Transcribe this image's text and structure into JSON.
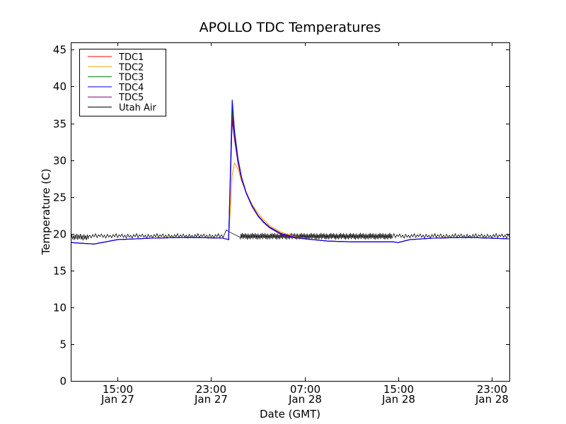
{
  "chart_data": {
    "type": "line",
    "title": "APOLLO TDC Temperatures",
    "xlabel": "Date (GMT)",
    "ylabel": "Temperature (C)",
    "ylim": [
      0,
      46
    ],
    "yticks": [
      0,
      5,
      10,
      15,
      20,
      25,
      30,
      35,
      40,
      45
    ],
    "xlim": [
      11.0,
      48.5
    ],
    "xticks": [
      {
        "x": 15.0,
        "time": "15:00",
        "date": "Jan 27"
      },
      {
        "x": 23.0,
        "time": "23:00",
        "date": "Jan 27"
      },
      {
        "x": 31.0,
        "time": "07:00",
        "date": "Jan 28"
      },
      {
        "x": 39.0,
        "time": "15:00",
        "date": "Jan 28"
      },
      {
        "x": 47.0,
        "time": "23:00",
        "date": "Jan 28"
      }
    ],
    "legend_position": "top-left",
    "series": [
      {
        "name": "TDC1",
        "color": "#ff0000",
        "x": [
          11.0,
          12.0,
          13.0,
          14.0,
          15.0,
          18.0,
          21.0,
          24.0,
          24.5,
          24.8,
          25.0,
          25.3,
          25.6,
          26.0,
          26.5,
          27.0,
          27.5,
          28.0,
          29.0,
          30.0,
          31.0,
          33.0,
          35.0,
          38.0,
          38.5,
          39.0,
          40.0,
          42.0,
          45.0,
          48.5
        ],
        "y": [
          18.8,
          18.7,
          18.6,
          18.9,
          19.2,
          19.4,
          19.5,
          19.4,
          19.2,
          36.0,
          33.0,
          29.8,
          27.5,
          25.6,
          23.8,
          22.5,
          21.6,
          20.9,
          20.0,
          19.6,
          19.3,
          19.0,
          18.9,
          18.9,
          18.9,
          18.8,
          19.2,
          19.4,
          19.5,
          19.3
        ]
      },
      {
        "name": "TDC2",
        "color": "#ffa500",
        "x": [
          11.0,
          12.0,
          13.0,
          14.0,
          15.0,
          18.0,
          21.0,
          24.0,
          24.5,
          24.8,
          25.0,
          25.3,
          25.6,
          26.0,
          26.5,
          27.0,
          27.5,
          28.0,
          29.0,
          30.0,
          31.0,
          33.0,
          35.0,
          38.0,
          38.5,
          39.0,
          40.0,
          42.0,
          45.0,
          48.5
        ],
        "y": [
          18.8,
          18.7,
          18.6,
          18.9,
          19.2,
          19.4,
          19.5,
          19.4,
          19.2,
          28.0,
          29.6,
          28.8,
          27.2,
          25.6,
          24.0,
          22.8,
          21.9,
          21.1,
          20.2,
          19.7,
          19.3,
          19.0,
          18.9,
          18.9,
          18.9,
          18.8,
          19.2,
          19.4,
          19.5,
          19.3
        ]
      },
      {
        "name": "TDC3",
        "color": "#008000",
        "x": [
          11.0,
          12.0,
          13.0,
          14.0,
          15.0,
          18.0,
          21.0,
          24.0,
          24.5,
          24.8,
          25.0,
          25.3,
          25.6,
          26.0,
          26.5,
          27.0,
          27.5,
          28.0,
          29.0,
          30.0,
          31.0,
          33.0,
          35.0,
          38.0,
          38.5,
          39.0,
          40.0,
          42.0,
          45.0,
          48.5
        ],
        "y": [
          18.8,
          18.7,
          18.6,
          18.9,
          19.2,
          19.4,
          19.5,
          19.4,
          19.2,
          37.0,
          33.5,
          30.0,
          27.6,
          25.5,
          23.7,
          22.4,
          21.5,
          20.8,
          19.9,
          19.5,
          19.3,
          19.0,
          18.9,
          18.9,
          18.9,
          18.8,
          19.2,
          19.4,
          19.5,
          19.3
        ]
      },
      {
        "name": "TDC4",
        "color": "#0000ff",
        "x": [
          11.0,
          12.0,
          13.0,
          14.0,
          15.0,
          18.0,
          21.0,
          24.0,
          24.5,
          24.8,
          25.0,
          25.3,
          25.6,
          26.0,
          26.5,
          27.0,
          27.5,
          28.0,
          29.0,
          30.0,
          31.0,
          33.0,
          35.0,
          38.0,
          38.5,
          39.0,
          40.0,
          42.0,
          45.0,
          48.5
        ],
        "y": [
          18.8,
          18.7,
          18.6,
          18.9,
          19.2,
          19.4,
          19.5,
          19.4,
          19.2,
          38.2,
          34.0,
          30.2,
          27.7,
          25.6,
          23.8,
          22.5,
          21.6,
          20.9,
          20.0,
          19.6,
          19.3,
          19.0,
          18.9,
          18.9,
          18.9,
          18.8,
          19.2,
          19.4,
          19.5,
          19.3
        ]
      },
      {
        "name": "TDC5",
        "color": "#800080",
        "x": [
          11.0,
          12.0,
          13.0,
          14.0,
          15.0,
          18.0,
          21.0,
          24.0,
          24.5,
          24.8,
          25.0,
          25.3,
          25.6,
          26.0,
          26.5,
          27.0,
          27.5,
          28.0,
          29.0,
          30.0,
          31.0,
          33.0,
          35.0,
          38.0,
          38.5,
          39.0,
          40.0,
          42.0,
          45.0,
          48.5
        ],
        "y": [
          18.8,
          18.7,
          18.6,
          18.9,
          19.2,
          19.4,
          19.5,
          19.4,
          19.2,
          35.5,
          32.8,
          29.6,
          27.4,
          25.5,
          23.7,
          22.4,
          21.5,
          20.8,
          19.9,
          19.5,
          19.3,
          19.0,
          18.9,
          18.9,
          18.9,
          18.8,
          19.2,
          19.4,
          19.5,
          19.3
        ]
      },
      {
        "name": "Utah Air",
        "color": "#000000",
        "segments": [
          {
            "x_start": 11.0,
            "x_end": 12.5,
            "low": 19.1,
            "high": 20.0,
            "osc_period": 0.15
          },
          {
            "x_start": 12.5,
            "x_end": 24.0,
            "low": 19.4,
            "high": 20.0,
            "osc_period": 0.25
          },
          {
            "x_start": 25.5,
            "x_end": 38.5,
            "low": 19.2,
            "high": 20.1,
            "osc_period": 0.12
          },
          {
            "x_start": 38.5,
            "x_end": 48.5,
            "low": 19.4,
            "high": 20.0,
            "osc_period": 0.25
          }
        ],
        "bump": {
          "x": [
            24.0,
            24.3,
            24.6,
            25.0,
            25.5
          ],
          "y": [
            19.4,
            20.5,
            20.2,
            19.9,
            19.5
          ]
        }
      }
    ]
  }
}
